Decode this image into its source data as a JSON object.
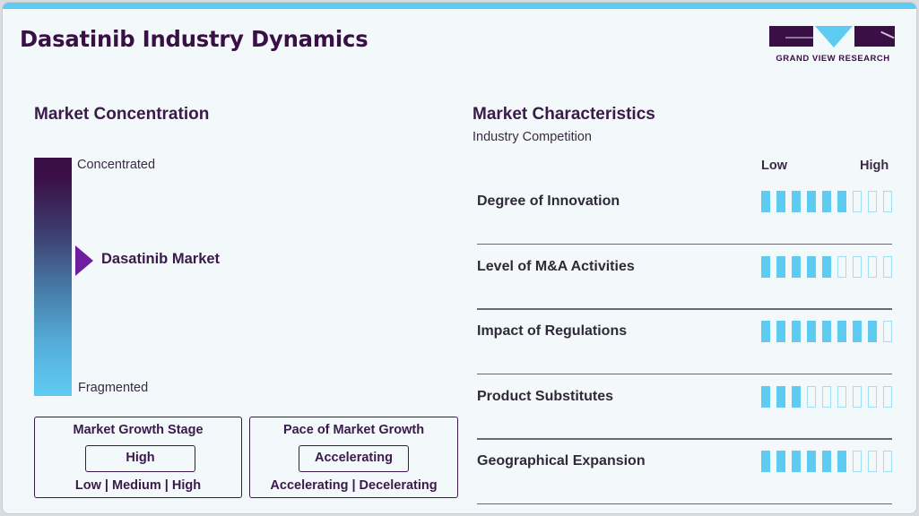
{
  "header": {
    "title": "Dasatinib Industry Dynamics",
    "logo_text": "GRAND VIEW RESEARCH"
  },
  "concentration": {
    "heading": "Market Concentration",
    "top_label": "Concentrated",
    "bottom_label": "Fragmented",
    "marker_label": "Dasatinib Market"
  },
  "growth_stage": {
    "title": "Market Growth Stage",
    "value": "High",
    "options": "Low  |  Medium  |  High"
  },
  "growth_pace": {
    "title": "Pace of Market Growth",
    "value": "Accelerating",
    "options": "Accelerating  |  Decelerating"
  },
  "characteristics": {
    "heading": "Market Characteristics",
    "subheading": "Industry Competition",
    "low_label": "Low",
    "high_label": "High",
    "max_level": 9,
    "rows": [
      {
        "label": "Degree of Innovation",
        "level": 6
      },
      {
        "label": "Level of M&A Activities",
        "level": 5
      },
      {
        "label": "Impact of Regulations",
        "level": 8
      },
      {
        "label": "Product Substitutes",
        "level": 3
      },
      {
        "label": "Geographical Expansion",
        "level": 6
      }
    ]
  },
  "colors": {
    "brand_dark": "#3a0f46",
    "accent": "#5ecbf3",
    "marker": "#6e1fa0"
  }
}
